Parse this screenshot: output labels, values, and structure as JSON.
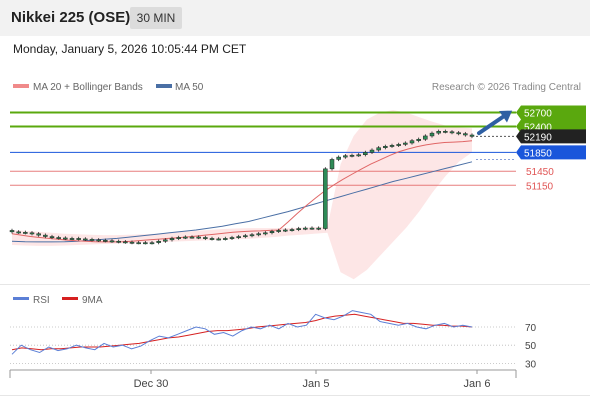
{
  "header": {
    "title": "Nikkei 225 (OSE)",
    "timeframe": "30 MIN"
  },
  "timestamp": "Monday, January 5, 2026 10:05:44 PM CET",
  "legend": {
    "item1": "MA 20 + Bollinger Bands",
    "item2": "MA 50",
    "credit": "Research © 2026 Trading Central",
    "rsi": "RSI",
    "ma9": "9MA"
  },
  "colors": {
    "candle": "#2e8b57",
    "ma20": "#e06666",
    "ma50": "#4a6fa5",
    "band": "#fde2e2",
    "resistance": "#5aa80e",
    "pivot": "#1a56db",
    "support": "#e05555",
    "arrow": "#2e5fa3",
    "rsi": "#5b7fd6",
    "rsi_ma": "#d62020"
  },
  "chart_data": {
    "type": "candlestick",
    "ylim": [
      49050,
      53050
    ],
    "levels": [
      {
        "value": 52700,
        "label": "52700",
        "kind": "resistance"
      },
      {
        "value": 52400,
        "label": "52400",
        "kind": "resistance"
      },
      {
        "value": 52190,
        "label": "52190",
        "kind": "current"
      },
      {
        "value": 51850,
        "label": "51850",
        "kind": "pivot"
      },
      {
        "value": 51450,
        "label": "51450",
        "kind": "support"
      },
      {
        "value": 51150,
        "label": "51150",
        "kind": "support"
      }
    ],
    "x_ticks": [
      "Dec 30",
      "Jan 5",
      "Jan 6"
    ],
    "closes": [
      50160,
      50150,
      50140,
      50120,
      50090,
      50060,
      50040,
      50030,
      50020,
      50020,
      50010,
      50000,
      49990,
      49980,
      49970,
      49960,
      49950,
      49940,
      49930,
      49930,
      49925,
      49930,
      49960,
      49990,
      50020,
      50040,
      50050,
      50050,
      50040,
      50020,
      50010,
      50010,
      50020,
      50040,
      50060,
      50080,
      50100,
      50120,
      50140,
      50170,
      50190,
      50200,
      50210,
      50230,
      50240,
      50240,
      50230,
      51500,
      51700,
      51750,
      51780,
      51790,
      51800,
      51850,
      51900,
      51950,
      51980,
      52000,
      52020,
      52050,
      52100,
      52130,
      52200,
      52260,
      52300,
      52290,
      52270,
      52250,
      52220,
      52190
    ],
    "ma20": [
      50120,
      50090,
      50060,
      50040,
      50020,
      50000,
      49985,
      49970,
      49960,
      49950,
      49945,
      49945,
      49950,
      49960,
      49975,
      49990,
      50005,
      50020,
      50035,
      50050,
      50070,
      50090,
      50110,
      50130,
      50150,
      50165,
      50175,
      50180,
      50190,
      50200,
      50370,
      50550,
      50720,
      50880,
      51030,
      51160,
      51280,
      51390,
      51500,
      51600,
      51690,
      51780,
      51860,
      51920,
      51970,
      52010,
      52040,
      52060,
      52070,
      52080,
      52100
    ],
    "ma50": [
      49960,
      49950,
      49945,
      49945,
      49950,
      49960,
      49980,
      50000,
      50020,
      50050,
      50080,
      50110,
      50140,
      50170,
      50200,
      50240,
      50280,
      50330,
      50380,
      50450,
      50520,
      50590,
      50670,
      50750,
      50830,
      50910,
      50990,
      51070,
      51150,
      51230,
      51300,
      51370,
      51440,
      51510,
      51580,
      51650
    ],
    "bb_upper": [
      50200,
      50180,
      50160,
      50140,
      50120,
      50110,
      50100,
      50090,
      50090,
      50100,
      50110,
      50120,
      50140,
      50160,
      50180,
      50200,
      50220,
      50230,
      50240,
      50240,
      50240,
      50240,
      50250,
      50260,
      50270,
      51600,
      52200,
      52550,
      52700,
      52750,
      52700,
      52600,
      52500,
      52420,
      52380,
      52360
    ],
    "bb_lower": [
      49880,
      49870,
      49860,
      49860,
      49870,
      49880,
      49890,
      49900,
      49910,
      49920,
      49930,
      49940,
      49950,
      49960,
      49970,
      49980,
      49990,
      50000,
      50010,
      50030,
      50050,
      50080,
      50100,
      50120,
      50140,
      49300,
      49150,
      49350,
      49650,
      49950,
      50250,
      50600,
      51000,
      51350,
      51650,
      51850
    ],
    "rsi": {
      "ticks": [
        70,
        50,
        30
      ],
      "ylim": [
        15,
        92
      ],
      "values": [
        40,
        50,
        45,
        42,
        48,
        44,
        46,
        50,
        47,
        45,
        52,
        48,
        50,
        46,
        49,
        55,
        60,
        58,
        62,
        66,
        70,
        68,
        62,
        64,
        60,
        66,
        70,
        68,
        72,
        68,
        74,
        70,
        72,
        84,
        80,
        78,
        82,
        88,
        86,
        84,
        76,
        74,
        72,
        74,
        70,
        68,
        72,
        74,
        70,
        72,
        70
      ],
      "ma": [
        45,
        47,
        46,
        45,
        46,
        46,
        47,
        48,
        48,
        48,
        49,
        50,
        51,
        52,
        54,
        56,
        58,
        59,
        61,
        63,
        65,
        66,
        66,
        67,
        68,
        70,
        71,
        72,
        73,
        74,
        75,
        77,
        80,
        82,
        83,
        84,
        82,
        80,
        78,
        76,
        74,
        74,
        73,
        72,
        72,
        71,
        71,
        70
      ]
    }
  }
}
